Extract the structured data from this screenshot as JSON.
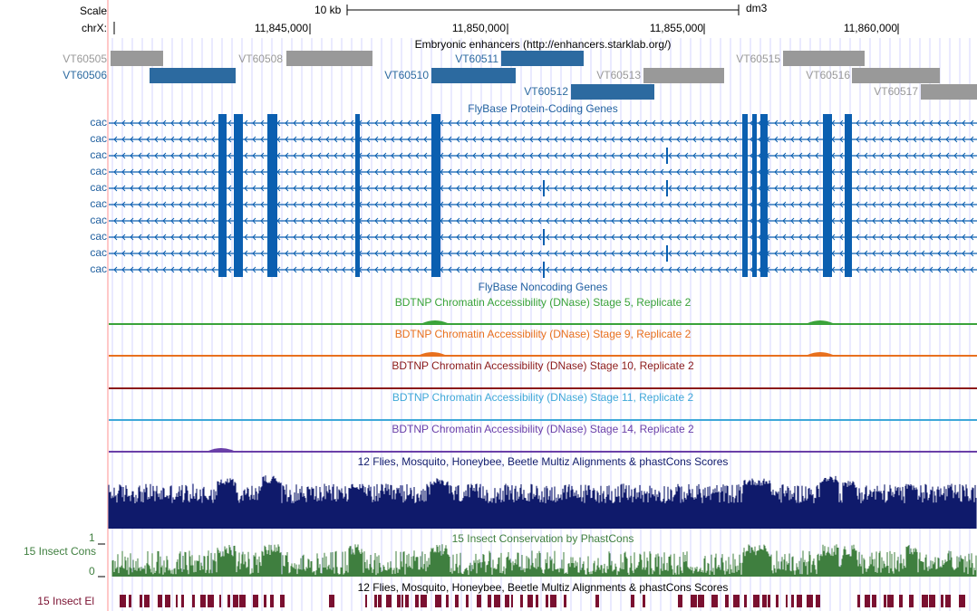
{
  "colors": {
    "gridline": "#d4d4ff",
    "left_bar": "#ffc8c8",
    "enhancer_gray": "#999999",
    "enhancer_blue": "#2c6aa0",
    "gene_blue": "#0b5fb0",
    "dnase_stage5": "#3aa33a",
    "dnase_stage9": "#e8701e",
    "dnase_stage10": "#8b1a1a",
    "dnase_stage11": "#3fa8d8",
    "dnase_stage14": "#6a3fa8",
    "multiz_navy": "#0f1a6b",
    "insect_cons_green": "#3f7f3f",
    "insect_el_maroon": "#7a1030"
  },
  "ruler": {
    "scale_label": "Scale",
    "chrom_label": "chrX:",
    "scale_bar_label": "10 kb",
    "assembly": "dm3",
    "positions": [
      "11,845,000",
      "11,850,000",
      "11,855,000",
      "11,860,000"
    ]
  },
  "enhancers": {
    "title": "Embryonic enhancers (http://enhancers.starklab.org/)",
    "items": [
      {
        "name": "VT60505",
        "color": "gray"
      },
      {
        "name": "VT60506",
        "color": "blue"
      },
      {
        "name": "VT60508",
        "color": "gray"
      },
      {
        "name": "VT60510",
        "color": "blue"
      },
      {
        "name": "VT60511",
        "color": "blue"
      },
      {
        "name": "VT60512",
        "color": "blue"
      },
      {
        "name": "VT60513",
        "color": "gray"
      },
      {
        "name": "VT60515",
        "color": "gray"
      },
      {
        "name": "VT60516",
        "color": "gray"
      },
      {
        "name": "VT60517",
        "color": "gray"
      }
    ]
  },
  "coding_genes": {
    "title": "FlyBase Protein-Coding Genes",
    "transcripts": [
      "cac",
      "cac",
      "cac",
      "cac",
      "cac",
      "cac",
      "cac",
      "cac",
      "cac",
      "cac"
    ]
  },
  "noncoding_genes": {
    "title": "FlyBase Noncoding Genes"
  },
  "dnase": [
    {
      "title": "BDTNP Chromatin Accessibility (DNase) Stage 5, Replicate 2",
      "color_key": "dnase_stage5"
    },
    {
      "title": "BDTNP Chromatin Accessibility (DNase) Stage 9, Replicate 2",
      "color_key": "dnase_stage9"
    },
    {
      "title": "BDTNP Chromatin Accessibility (DNase) Stage 10, Replicate 2",
      "color_key": "dnase_stage10"
    },
    {
      "title": "BDTNP Chromatin Accessibility (DNase) Stage 11, Replicate 2",
      "color_key": "dnase_stage11"
    },
    {
      "title": "BDTNP Chromatin Accessibility (DNase) Stage 14, Replicate 2",
      "color_key": "dnase_stage14"
    }
  ],
  "multiz": {
    "title": "12 Flies, Mosquito, Honeybee, Beetle Multiz Alignments & phastCons Scores"
  },
  "insect_cons": {
    "side_label": "15 Insect Cons",
    "title": "15 Insect Conservation by PhastCons",
    "y_max": "1",
    "y_min": "0"
  },
  "insect_el": {
    "side_label": "15 Insect El",
    "title": "12 Flies, Mosquito, Honeybee, Beetle Multiz Alignments & phastCons Scores"
  }
}
